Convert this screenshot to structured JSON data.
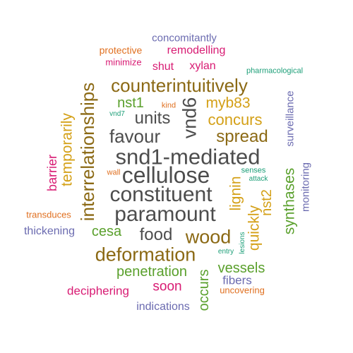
{
  "colors": {
    "dark_gray": "#4d4d4d",
    "brown": "#8b6914",
    "gold": "#d4a017",
    "green": "#5aa02c",
    "orange": "#e07020",
    "purple": "#6b6bb0",
    "magenta": "#d81b73",
    "teal": "#1b9e77"
  },
  "words": [
    {
      "text": "snd1-mediated"
    },
    {
      "text": "cellulose"
    },
    {
      "text": "constituent"
    },
    {
      "text": "paramount"
    },
    {
      "text": "counterintuitively"
    },
    {
      "text": "interrelationships"
    },
    {
      "text": "favour"
    },
    {
      "text": "units"
    },
    {
      "text": "vnd6"
    },
    {
      "text": "deformation"
    },
    {
      "text": "wood"
    },
    {
      "text": "food"
    },
    {
      "text": "spread"
    },
    {
      "text": "concurs"
    },
    {
      "text": "myb83"
    },
    {
      "text": "lignin"
    },
    {
      "text": "quickly"
    },
    {
      "text": "nst2"
    },
    {
      "text": "synthases"
    },
    {
      "text": "temporarily"
    },
    {
      "text": "barrier"
    },
    {
      "text": "nst1"
    },
    {
      "text": "cesa"
    },
    {
      "text": "penetration"
    },
    {
      "text": "vessels"
    },
    {
      "text": "occurs"
    },
    {
      "text": "soon"
    },
    {
      "text": "deciphering"
    },
    {
      "text": "fibers"
    },
    {
      "text": "indications"
    },
    {
      "text": "uncovering"
    },
    {
      "text": "thickening"
    },
    {
      "text": "transduces"
    },
    {
      "text": "monitoring"
    },
    {
      "text": "surveillance"
    },
    {
      "text": "remodelling"
    },
    {
      "text": "concomitantly"
    },
    {
      "text": "protective"
    },
    {
      "text": "minimize"
    },
    {
      "text": "shut"
    },
    {
      "text": "xylan"
    },
    {
      "text": "pharmacological"
    },
    {
      "text": "kind"
    },
    {
      "text": "vnd7"
    },
    {
      "text": "wall"
    },
    {
      "text": "senses"
    },
    {
      "text": "attack"
    },
    {
      "text": "lesions"
    },
    {
      "text": "entry"
    }
  ]
}
